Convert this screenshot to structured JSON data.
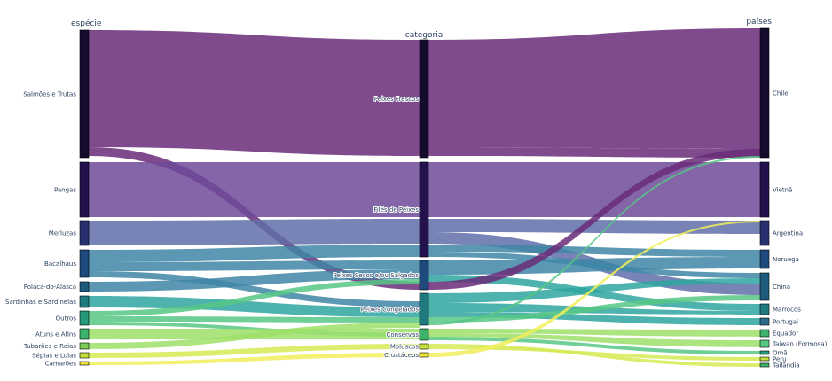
{
  "dimensions": [
    "espécie",
    "categoria",
    "países"
  ],
  "colors": {
    "purple_dark": "#6a2c78",
    "purple_mid": "#6f4a99",
    "slate_blue": "#5f6ea8",
    "teal_blue": "#3f86a6",
    "teal": "#2fa6a0",
    "green": "#57c785",
    "light_green": "#9de06a",
    "yellow_green": "#d6ea55",
    "yellow": "#f1ef5a",
    "node_dark": "#140b2d"
  },
  "axes": [
    {
      "title": "espécie",
      "nodes": [
        {
          "label": "Salmões e Trutas",
          "color": "#140b2d"
        },
        {
          "label": "Pangas",
          "color": "#24124f"
        },
        {
          "label": "Merluzas",
          "color": "#28306f"
        },
        {
          "label": "Bacalhaus",
          "color": "#1f4a7e"
        },
        {
          "label": "Polaca-do-Alasca",
          "color": "#1d5b7c"
        },
        {
          "label": "Sardinhas e Sardinelas",
          "color": "#1f7a80"
        },
        {
          "label": "Outros",
          "color": "#249a7a"
        },
        {
          "label": "Atuns e Afins",
          "color": "#3cb36b"
        },
        {
          "label": "Tubarões e Raias",
          "color": "#7ccd58"
        },
        {
          "label": "Sépias e Lulas",
          "color": "#c2df3e"
        },
        {
          "label": "Camarões",
          "color": "#eae23a"
        }
      ]
    },
    {
      "title": "categoria",
      "nodes": [
        {
          "label": "Peixes Frescos",
          "color": "#140b2d"
        },
        {
          "label": "Filés de Peixes",
          "color": "#24124f"
        },
        {
          "label": "Peixes Secos e/ou Salgados",
          "color": "#1f4a7e"
        },
        {
          "label": "Peixes Congelados",
          "color": "#1f7a80"
        },
        {
          "label": "Conservas",
          "color": "#3cb36b"
        },
        {
          "label": "Moluscos",
          "color": "#c2df3e"
        },
        {
          "label": "Crustáceos",
          "color": "#eae23a"
        }
      ]
    },
    {
      "title": "países",
      "nodes": [
        {
          "label": "Chile",
          "color": "#140b2d"
        },
        {
          "label": "Vietnã",
          "color": "#24124f"
        },
        {
          "label": "Argentina",
          "color": "#28306f"
        },
        {
          "label": "Noruega",
          "color": "#1f4a7e"
        },
        {
          "label": "China",
          "color": "#1d5b7c"
        },
        {
          "label": "Marrocos",
          "color": "#1f7a80"
        },
        {
          "label": "Portugal",
          "color": "#2a6b8c"
        },
        {
          "label": "Equador",
          "color": "#3cb36b"
        },
        {
          "label": "Taiwan (Formosa)",
          "color": "#57c785"
        },
        {
          "label": "Omã",
          "color": "#249a7a"
        },
        {
          "label": "Peru",
          "color": "#c2df3e"
        },
        {
          "label": "Tailândia",
          "color": "#3cb36b"
        }
      ]
    }
  ]
}
